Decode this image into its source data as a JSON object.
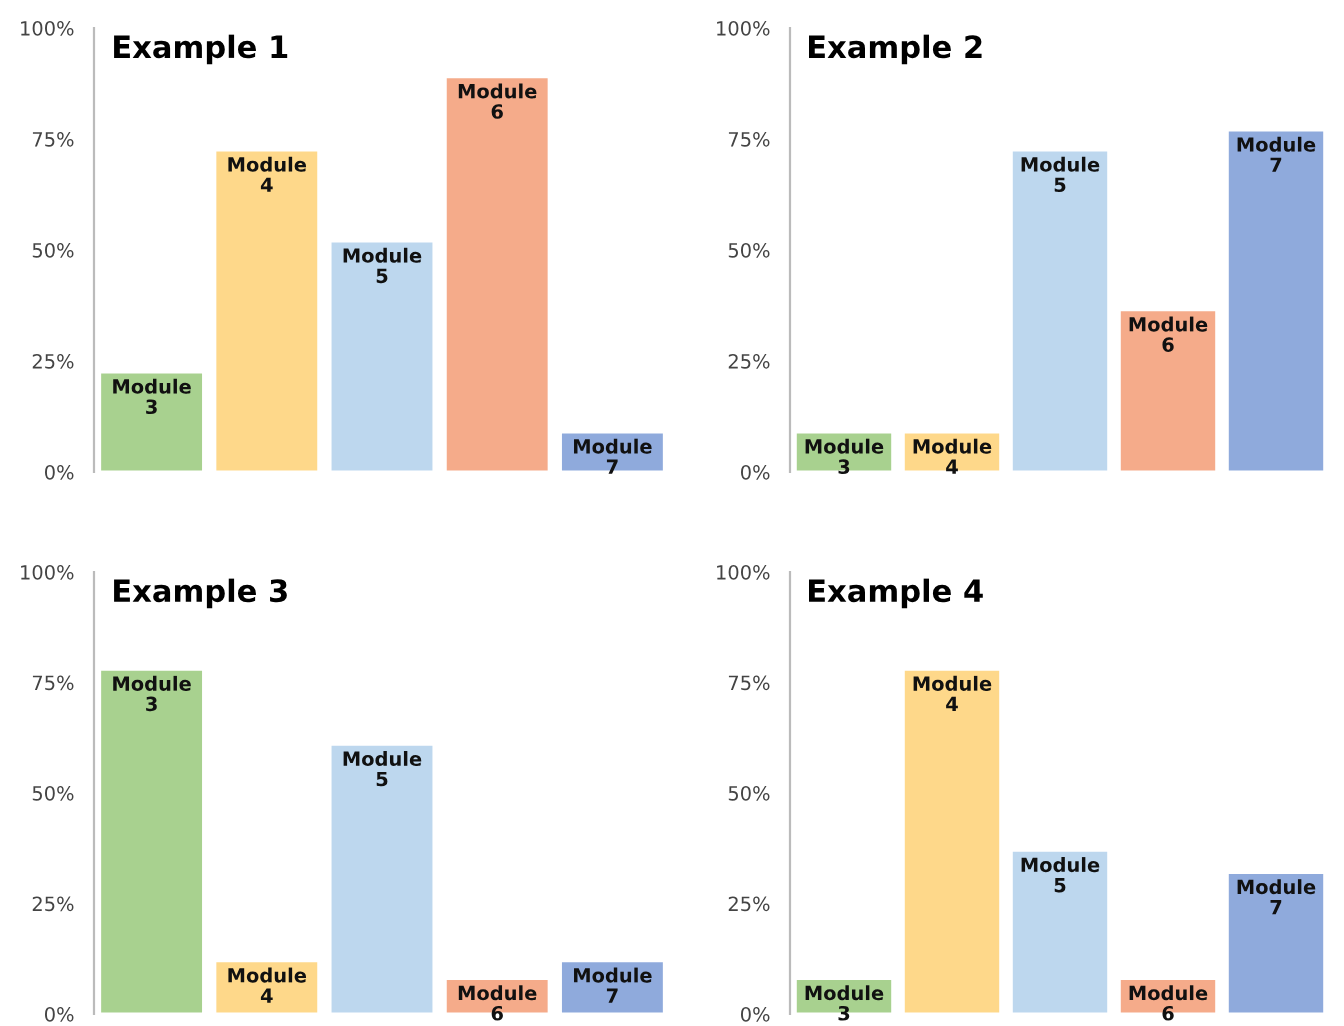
{
  "chart_data": [
    {
      "type": "bar",
      "title": "Example 1",
      "categories": [
        "Module\n3",
        "Module\n4",
        "Module\n5",
        "Module\n6",
        "Module\n7"
      ],
      "values": [
        22.5,
        72.5,
        52,
        89,
        9
      ],
      "colors": [
        "#a8d18f",
        "#fed88a",
        "#bdd7ee",
        "#f5ab8a",
        "#8faadc"
      ],
      "ylim": [
        0,
        100
      ],
      "yticks": [
        {
          "value": 0,
          "label": "0%"
        },
        {
          "value": 25,
          "label": "25%"
        },
        {
          "value": 50,
          "label": "50%"
        },
        {
          "value": 75,
          "label": "75%"
        },
        {
          "value": 100,
          "label": "100%"
        }
      ],
      "tick_labels": "y",
      "grid": false,
      "legend": false
    },
    {
      "type": "bar",
      "title": "Example 2",
      "categories": [
        "Module\n3",
        "Module\n4",
        "Module\n5",
        "Module\n6",
        "Module\n7"
      ],
      "values": [
        9,
        9,
        72.5,
        36.5,
        77
      ],
      "colors": [
        "#a8d18f",
        "#fed88a",
        "#bdd7ee",
        "#f5ab8a",
        "#8faadc"
      ],
      "ylim": [
        0,
        100
      ],
      "yticks": [
        {
          "value": 0,
          "label": "0%"
        },
        {
          "value": 25,
          "label": "25%"
        },
        {
          "value": 50,
          "label": "50%"
        },
        {
          "value": 75,
          "label": "75%"
        },
        {
          "value": 100,
          "label": "100%"
        }
      ],
      "tick_labels": "y",
      "grid": false,
      "legend": false
    },
    {
      "type": "bar",
      "title": "Example 3",
      "categories": [
        "Module\n3",
        "Module\n4",
        "Module\n5",
        "Module\n6",
        "Module\n7"
      ],
      "values": [
        78,
        12,
        61,
        8,
        12
      ],
      "colors": [
        "#a8d18f",
        "#fed88a",
        "#bdd7ee",
        "#f5ab8a",
        "#8faadc"
      ],
      "ylim": [
        0,
        100
      ],
      "yticks": [
        {
          "value": 0,
          "label": "0%"
        },
        {
          "value": 25,
          "label": "25%"
        },
        {
          "value": 50,
          "label": "50%"
        },
        {
          "value": 75,
          "label": "75%"
        },
        {
          "value": 100,
          "label": "100%"
        }
      ],
      "tick_labels": "y",
      "grid": false,
      "legend": false
    },
    {
      "type": "bar",
      "title": "Example 4",
      "categories": [
        "Module\n3",
        "Module\n4",
        "Module\n5",
        "Module\n6",
        "Module\n7"
      ],
      "values": [
        8,
        78,
        37,
        8,
        32
      ],
      "colors": [
        "#a8d18f",
        "#fed88a",
        "#bdd7ee",
        "#f5ab8a",
        "#8faadc"
      ],
      "ylim": [
        0,
        100
      ],
      "yticks": [
        {
          "value": 0,
          "label": "0%"
        },
        {
          "value": 25,
          "label": "25%"
        },
        {
          "value": 50,
          "label": "50%"
        },
        {
          "value": 75,
          "label": "75%"
        },
        {
          "value": 100,
          "label": "100%"
        }
      ],
      "tick_labels": "y",
      "grid": false,
      "legend": false
    }
  ]
}
